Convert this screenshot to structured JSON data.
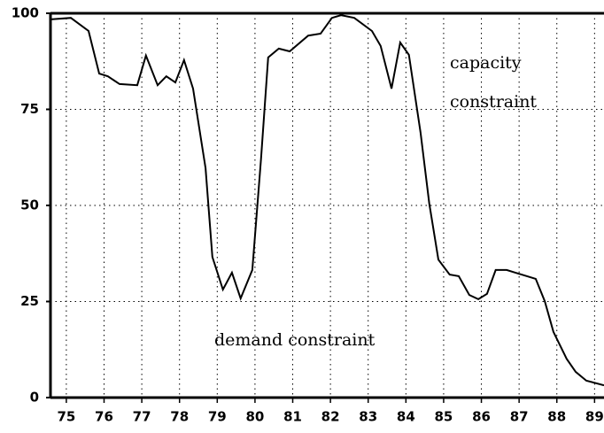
{
  "chart_data": {
    "type": "line",
    "annotations": [
      "capacity",
      "constraint",
      "demand constraint"
    ],
    "x": [
      74.58,
      75.12,
      75.59,
      75.87,
      76.1,
      76.41,
      76.88,
      77.11,
      77.42,
      77.65,
      77.89,
      78.12,
      78.36,
      78.69,
      78.87,
      79.15,
      79.39,
      79.62,
      79.93,
      80.16,
      80.35,
      80.63,
      80.92,
      81.41,
      81.74,
      82.04,
      82.28,
      82.63,
      83.1,
      83.33,
      83.62,
      83.85,
      84.08,
      84.39,
      84.62,
      84.86,
      85.16,
      85.4,
      85.68,
      85.92,
      86.15,
      86.38,
      86.67,
      86.9,
      87.21,
      87.44,
      87.68,
      87.91,
      88.26,
      88.5,
      88.78,
      89.25
    ],
    "values": [
      98.4,
      98.8,
      95.4,
      84.3,
      83.6,
      81.6,
      81.3,
      89,
      81.3,
      83.6,
      82,
      87.8,
      80.4,
      59.7,
      36.6,
      28.1,
      32.5,
      25.8,
      33.2,
      62,
      88.5,
      90.8,
      90.1,
      94.2,
      94.7,
      98.8,
      99.5,
      98.8,
      95.4,
      91.5,
      80.4,
      92.4,
      89.2,
      68.9,
      50.5,
      35.9,
      32,
      31.6,
      26.7,
      25.6,
      27,
      33.2,
      33.2,
      32.5,
      31.6,
      30.9,
      25.1,
      17.1,
      10.1,
      6.7,
      4.4,
      3.2
    ],
    "color": "#000000",
    "xlim": [
      74.58,
      89.25
    ],
    "xticks": [
      75,
      76,
      77,
      78,
      79,
      80,
      81,
      82,
      83,
      84,
      85,
      86,
      87,
      88,
      89
    ],
    "ylim": [
      0,
      100
    ],
    "yticks": [
      0,
      25,
      50,
      75,
      100
    ],
    "grid": true
  }
}
